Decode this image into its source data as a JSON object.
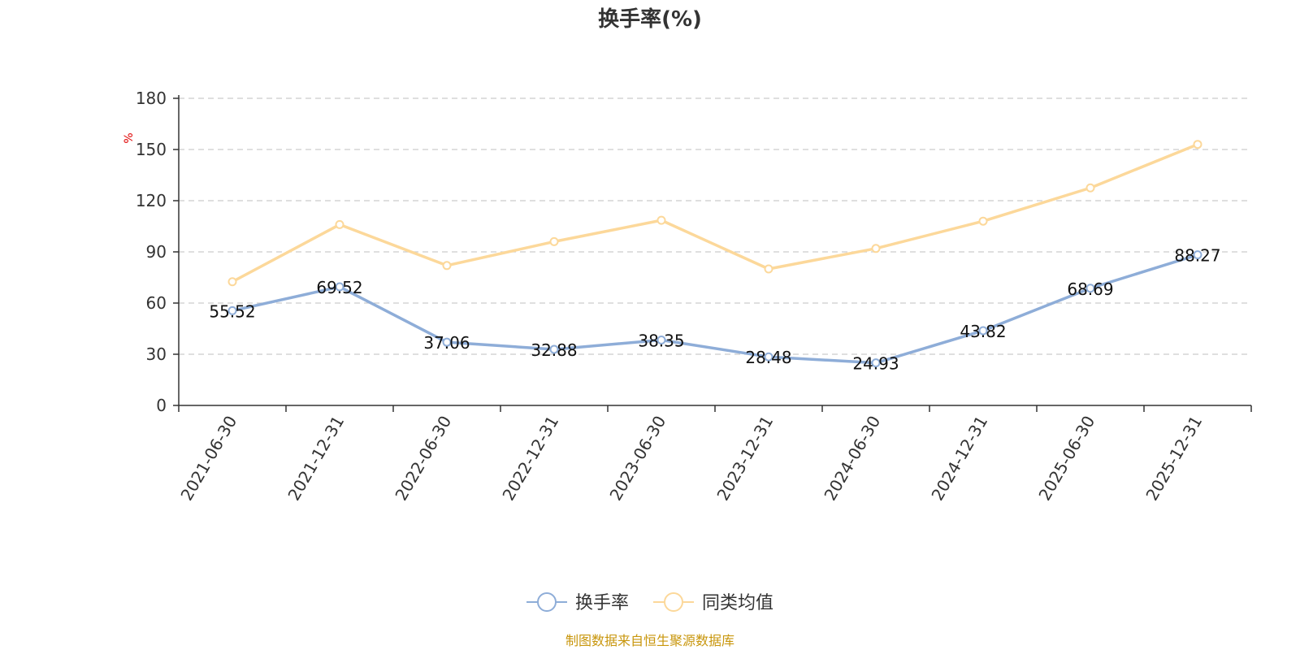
{
  "chart_data": {
    "type": "line",
    "title": "换手率(%)",
    "ylabel": "%",
    "ylim": [
      0,
      180
    ],
    "yticks": [
      0,
      30,
      60,
      90,
      120,
      150,
      180
    ],
    "grid": true,
    "legend_position": "bottom-center",
    "categories": [
      "2021-06-30",
      "2021-12-31",
      "2022-06-30",
      "2022-12-31",
      "2023-06-30",
      "2023-12-31",
      "2024-06-30",
      "2024-12-31",
      "2025-06-30",
      "2025-12-31"
    ],
    "series": [
      {
        "name": "换手率",
        "color": "#8eadd8",
        "show_labels": true,
        "values": [
          55.52,
          69.52,
          37.06,
          32.88,
          38.35,
          28.48,
          24.93,
          43.82,
          68.69,
          88.27
        ],
        "labels": [
          "55.52",
          "69.52",
          "37.06",
          "32.88",
          "38.35",
          "28.48",
          "24.93",
          "43.82",
          "68.69",
          "88.27"
        ]
      },
      {
        "name": "同类均值",
        "color": "#fcd89a",
        "show_labels": false,
        "values": [
          72.5,
          106,
          82,
          96,
          108.5,
          80,
          92,
          108,
          127.5,
          153
        ]
      }
    ]
  },
  "footer": {
    "source": "制图数据来自恒生聚源数据库",
    "source_color": "#c8960c"
  },
  "colors": {
    "axis": "#333333",
    "grid": "#cccccc",
    "unit": "#e00000"
  }
}
